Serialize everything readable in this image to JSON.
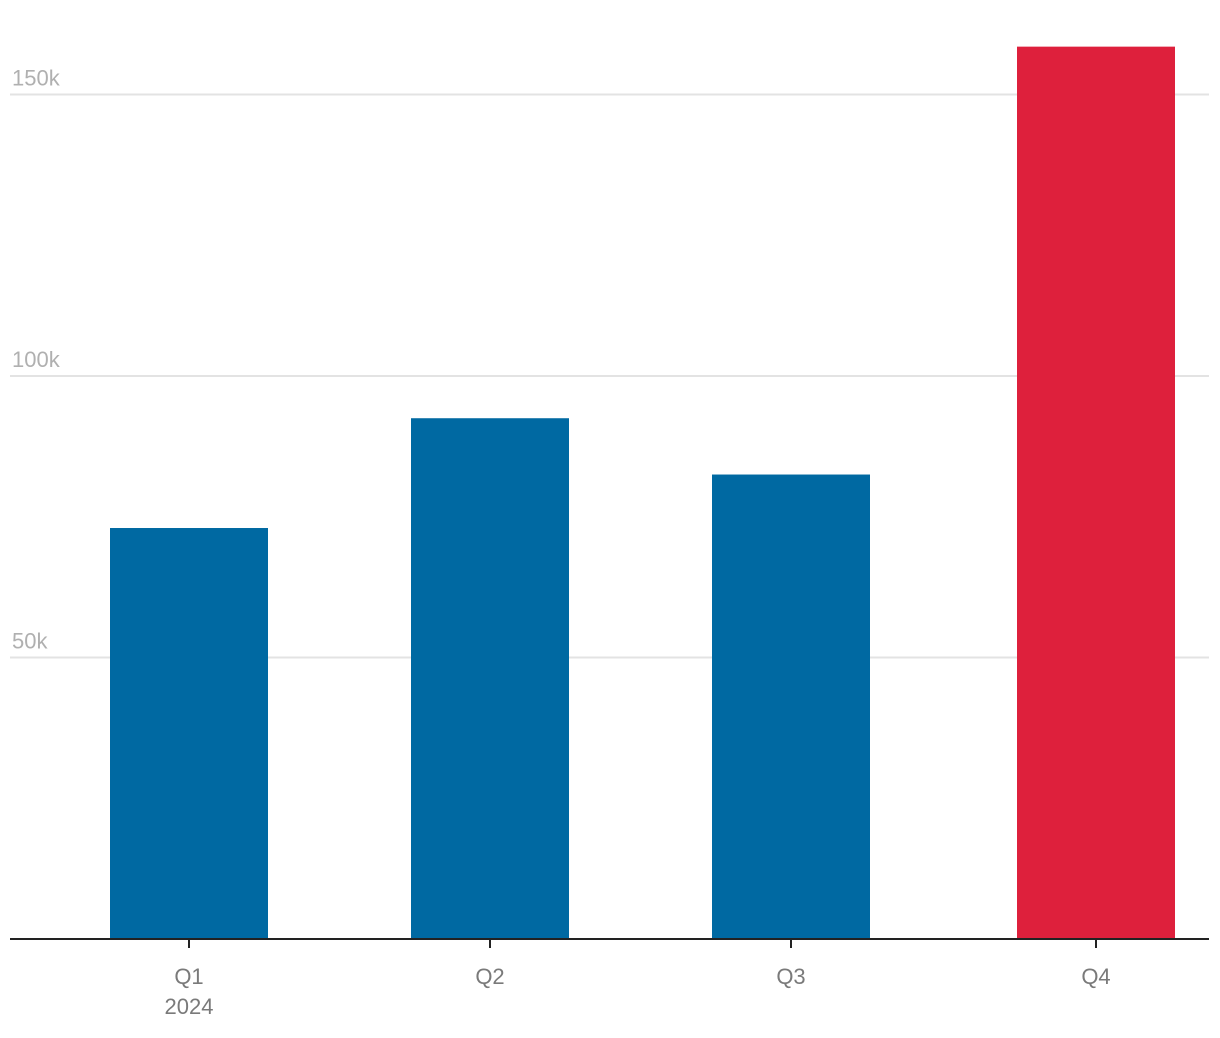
{
  "chart_data": {
    "type": "bar",
    "categories": [
      "Q1",
      "Q2",
      "Q3",
      "Q4"
    ],
    "category_sublabels": [
      "2024",
      "",
      "",
      ""
    ],
    "values": [
      73000,
      92500,
      82500,
      158500
    ],
    "ylim": [
      0,
      160000
    ],
    "yticks": [
      {
        "value": 50000,
        "label": "50k"
      },
      {
        "value": 100000,
        "label": "100k"
      },
      {
        "value": 150000,
        "label": "150k"
      }
    ],
    "grid": true,
    "colors": {
      "default": "#0069a2",
      "highlight": "#de203c"
    },
    "highlight_index": 3,
    "title": "",
    "xlabel": "",
    "ylabel": ""
  }
}
